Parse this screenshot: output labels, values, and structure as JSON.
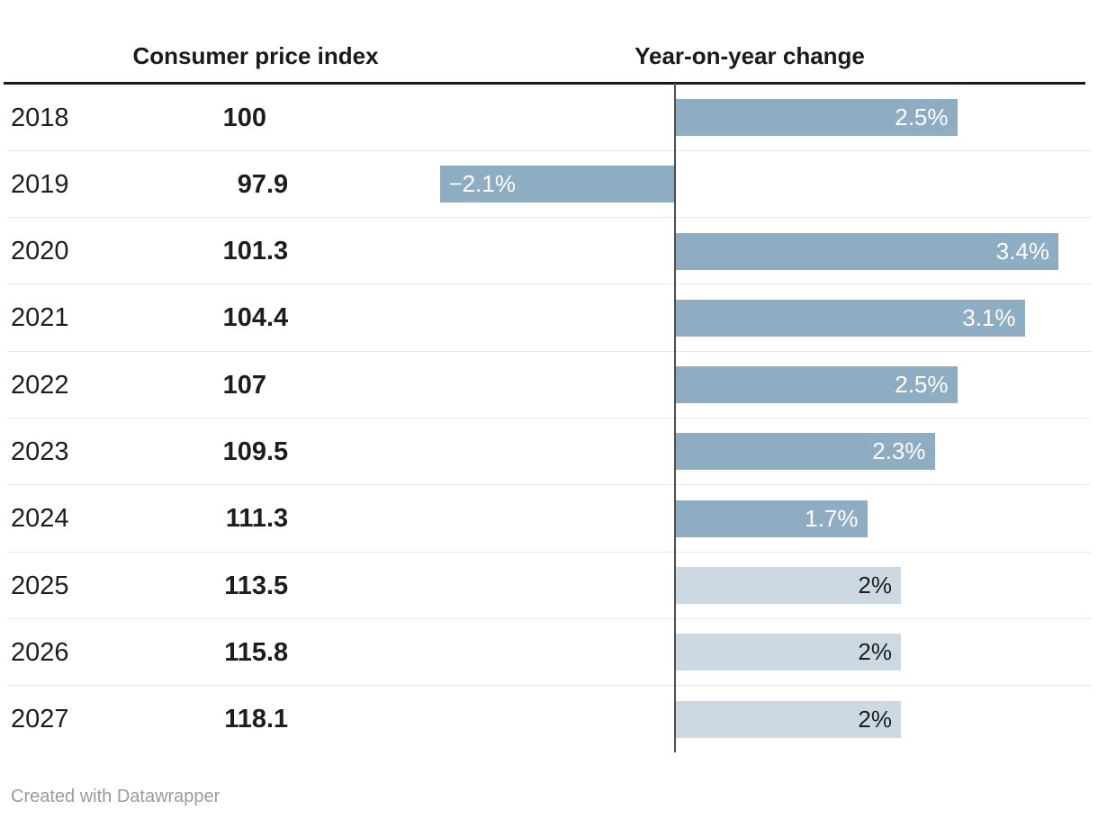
{
  "header": {
    "cpi_column": "Consumer price index",
    "yoy_column": "Year-on-year change"
  },
  "table": {
    "rows": [
      {
        "year": "2018",
        "cpi": "100",
        "change": 2.5,
        "change_label": "2.5%",
        "bar_style": "dark"
      },
      {
        "year": "2019",
        "cpi": "97.9",
        "change": -2.1,
        "change_label": "−2.1%",
        "bar_style": "dark"
      },
      {
        "year": "2020",
        "cpi": "101.3",
        "change": 3.4,
        "change_label": "3.4%",
        "bar_style": "dark"
      },
      {
        "year": "2021",
        "cpi": "104.4",
        "change": 3.1,
        "change_label": "3.1%",
        "bar_style": "dark"
      },
      {
        "year": "2022",
        "cpi": "107",
        "change": 2.5,
        "change_label": "2.5%",
        "bar_style": "dark"
      },
      {
        "year": "2023",
        "cpi": "109.5",
        "change": 2.3,
        "change_label": "2.3%",
        "bar_style": "dark"
      },
      {
        "year": "2024",
        "cpi": "111.3",
        "change": 1.7,
        "change_label": "1.7%",
        "bar_style": "dark"
      },
      {
        "year": "2025",
        "cpi": "113.5",
        "change": 2,
        "change_label": "2%",
        "bar_style": "light"
      },
      {
        "year": "2026",
        "cpi": "115.8",
        "change": 2,
        "change_label": "2%",
        "bar_style": "light"
      },
      {
        "year": "2027",
        "cpi": "118.1",
        "change": 2,
        "change_label": "2%",
        "bar_style": "light"
      }
    ]
  },
  "chart_data": {
    "type": "bar",
    "orientation": "horizontal",
    "title": "",
    "categories": [
      "2018",
      "2019",
      "2020",
      "2021",
      "2022",
      "2023",
      "2024",
      "2025",
      "2026",
      "2027"
    ],
    "series": [
      {
        "name": "Consumer price index",
        "values": [
          100,
          97.9,
          101.3,
          104.4,
          107,
          109.5,
          111.3,
          113.5,
          115.8,
          118.1
        ]
      },
      {
        "name": "Year-on-year change",
        "unit": "%",
        "values": [
          2.5,
          -2.1,
          3.4,
          3.1,
          2.5,
          2.3,
          1.7,
          2,
          2,
          2
        ]
      }
    ],
    "bar_labels": [
      "2.5%",
      "−2.1%",
      "3.4%",
      "3.1%",
      "2.5%",
      "2.3%",
      "1.7%",
      "2%",
      "2%",
      "2%"
    ],
    "light_colored_bars": [
      "2025",
      "2026",
      "2027"
    ],
    "xlim": [
      -2.4,
      3.7
    ],
    "zero_baseline": true,
    "grid": false,
    "legend_position": "none"
  },
  "colors": {
    "bar_dark": "#8fadc2",
    "bar_light": "#cdd9e2",
    "bar_label_dark_text": "#ffffff",
    "bar_label_light_text": "#1d1d1d",
    "baseline": "#4d4d4d",
    "header_rule": "#1a1a1a",
    "row_divider": "#e8e8e8",
    "text": "#1d1d1d",
    "credit_text": "#9b9b9b"
  },
  "footer": {
    "credit": "Created with Datawrapper"
  }
}
